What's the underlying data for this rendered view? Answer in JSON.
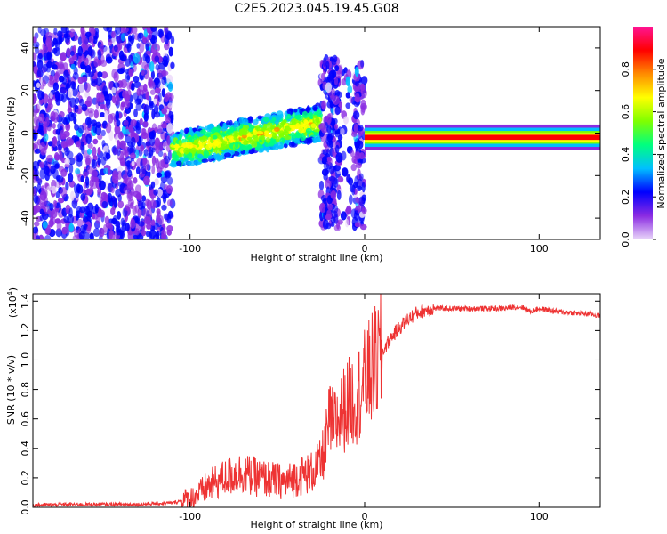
{
  "figure": {
    "title": "C2E5.2023.045.19.45.G08"
  },
  "chart_data": [
    {
      "type": "heatmap",
      "panel": "top",
      "xlabel": "Height of straight line (km)",
      "ylabel": "Frequency (Hz)",
      "xlim": [
        -190,
        135
      ],
      "ylim": [
        -50,
        50
      ],
      "xticks": [
        -100,
        0,
        100
      ],
      "yticks": [
        -40,
        -20,
        0,
        20,
        40
      ],
      "colorbar": {
        "label": "Normalized spectral amplitude",
        "range": [
          0.0,
          1.0
        ],
        "ticks": [
          0.0,
          0.2,
          0.4,
          0.6,
          0.8
        ],
        "colormap": [
          "#e9d6f9",
          "#8a2be2",
          "#0000ff",
          "#00bfff",
          "#00ff7f",
          "#7fff00",
          "#ffff00",
          "#ff8c00",
          "#ff0000",
          "#ff1493"
        ]
      },
      "regions": [
        {
          "x_range": [
            -190,
            -110
          ],
          "freq_range": [
            -50,
            50
          ],
          "amplitude": 0.15,
          "pattern": "broadband speckle"
        },
        {
          "x_range": [
            -110,
            -25
          ],
          "freq_center_start": -8,
          "freq_center_end": 5,
          "amplitude": 0.45,
          "pattern": "rising band"
        },
        {
          "x_range": [
            -25,
            0
          ],
          "freq_range": [
            -45,
            35
          ],
          "amplitude": 0.15,
          "pattern": "vertical speckle bursts"
        },
        {
          "x_range": [
            0,
            135
          ],
          "freq_center": -2,
          "amplitude": 0.9,
          "pattern": "narrow steady line"
        }
      ]
    },
    {
      "type": "line",
      "panel": "bottom",
      "xlabel": "Height of straight line (km)",
      "ylabel": "SNR (10 * v/v)",
      "y_multiplier": "(x10",
      "y_multiplier_exp": "4",
      "xlim": [
        -190,
        135
      ],
      "ylim": [
        0,
        1.45
      ],
      "xticks": [
        -100,
        0,
        100
      ],
      "yticks": [
        0.0,
        0.2,
        0.4,
        0.6,
        0.8,
        1.0,
        1.2,
        1.4
      ],
      "color": "#ee3333",
      "series": [
        {
          "x": [
            -190,
            -170,
            -150,
            -130,
            -110,
            -100,
            -95,
            -90,
            -85,
            -80,
            -75,
            -70,
            -65,
            -60,
            -55,
            -50,
            -45,
            -40,
            -35,
            -30,
            -25,
            -22,
            -20,
            -18,
            -15,
            -10,
            -5,
            0,
            5,
            10,
            15,
            20,
            25,
            30,
            35,
            40,
            50,
            60,
            70,
            80,
            85,
            90,
            95,
            100,
            110,
            120,
            130,
            135
          ],
          "y": [
            0.015,
            0.02,
            0.02,
            0.02,
            0.03,
            0.06,
            0.09,
            0.14,
            0.17,
            0.2,
            0.22,
            0.24,
            0.21,
            0.2,
            0.19,
            0.18,
            0.17,
            0.2,
            0.22,
            0.24,
            0.3,
            0.45,
            0.6,
            0.55,
            0.6,
            0.7,
            0.75,
            0.85,
            0.95,
            1.05,
            1.15,
            1.22,
            1.28,
            1.32,
            1.34,
            1.35,
            1.35,
            1.35,
            1.35,
            1.35,
            1.36,
            1.36,
            1.33,
            1.35,
            1.33,
            1.32,
            1.31,
            1.3
          ]
        }
      ]
    }
  ]
}
